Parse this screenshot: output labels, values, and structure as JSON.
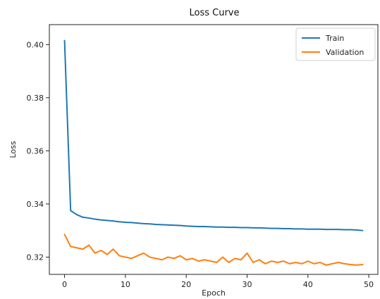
{
  "chart_data": {
    "type": "line",
    "title": "Loss Curve",
    "xlabel": "Epoch",
    "ylabel": "Loss",
    "xlim": [
      -2.5,
      51.5
    ],
    "ylim": [
      0.3135,
      0.4075
    ],
    "xticks": [
      0,
      10,
      20,
      30,
      40,
      50
    ],
    "yticks": [
      0.32,
      0.34,
      0.36,
      0.38,
      0.4
    ],
    "ytick_labels": [
      "0.32",
      "0.34",
      "0.36",
      "0.38",
      "0.40"
    ],
    "grid": false,
    "legend_position": "top-right",
    "x": [
      0,
      1,
      2,
      3,
      4,
      5,
      6,
      7,
      8,
      9,
      10,
      11,
      12,
      13,
      14,
      15,
      16,
      17,
      18,
      19,
      20,
      21,
      22,
      23,
      24,
      25,
      26,
      27,
      28,
      29,
      30,
      31,
      32,
      33,
      34,
      35,
      36,
      37,
      38,
      39,
      40,
      41,
      42,
      43,
      44,
      45,
      46,
      47,
      48,
      49
    ],
    "series": [
      {
        "name": "Train",
        "color": "#1f77b4",
        "values": [
          0.4015,
          0.3375,
          0.336,
          0.335,
          0.3347,
          0.3343,
          0.334,
          0.3338,
          0.3336,
          0.3333,
          0.3331,
          0.333,
          0.3328,
          0.3326,
          0.3325,
          0.3323,
          0.3322,
          0.3321,
          0.332,
          0.3319,
          0.3317,
          0.3316,
          0.3315,
          0.3315,
          0.3314,
          0.3313,
          0.3313,
          0.3312,
          0.3312,
          0.3311,
          0.3311,
          0.331,
          0.331,
          0.3309,
          0.3308,
          0.3308,
          0.3307,
          0.3307,
          0.3306,
          0.3306,
          0.3305,
          0.3305,
          0.3305,
          0.3304,
          0.3304,
          0.3304,
          0.3303,
          0.3303,
          0.3302,
          0.33
        ]
      },
      {
        "name": "Validation",
        "color": "#ff7f0e",
        "values": [
          0.3285,
          0.324,
          0.3235,
          0.323,
          0.3245,
          0.3215,
          0.3225,
          0.321,
          0.323,
          0.3205,
          0.32,
          0.3195,
          0.3205,
          0.3215,
          0.32,
          0.3195,
          0.319,
          0.32,
          0.3195,
          0.3205,
          0.319,
          0.3195,
          0.3185,
          0.319,
          0.3185,
          0.318,
          0.32,
          0.318,
          0.3195,
          0.319,
          0.3215,
          0.318,
          0.319,
          0.3175,
          0.3185,
          0.318,
          0.3185,
          0.3175,
          0.318,
          0.3175,
          0.3185,
          0.3175,
          0.318,
          0.317,
          0.3175,
          0.318,
          0.3175,
          0.3172,
          0.317,
          0.3172
        ]
      }
    ]
  }
}
